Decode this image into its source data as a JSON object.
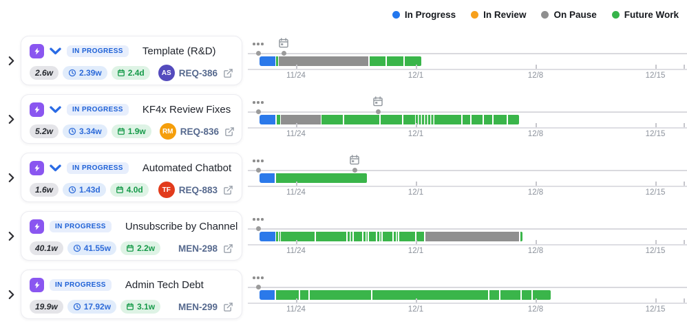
{
  "legend": {
    "items": [
      {
        "label": "In Progress",
        "color": "#2277ee"
      },
      {
        "label": "In Review",
        "color": "#f7a01c"
      },
      {
        "label": "On Pause",
        "color": "#8f8f8f"
      },
      {
        "label": "Future Work",
        "color": "#36b44a"
      }
    ]
  },
  "status_colors": {
    "progress": "#2b79ea",
    "pause": "#8f8f8f",
    "future": "#3ab54a"
  },
  "axis": {
    "ticks": [
      {
        "label": "11/24",
        "pos": 70
      },
      {
        "label": "12/1",
        "pos": 244
      },
      {
        "label": "12/8",
        "pos": 418
      },
      {
        "label": "12/15",
        "pos": 592
      }
    ],
    "end_tick_pos": 633
  },
  "tasks": [
    {
      "title": "Template (R&D)",
      "status": "IN PROGRESS",
      "has_chevron": true,
      "estimate": "2.6w",
      "logged": "2.39w",
      "remaining": "2.4d",
      "assignee": {
        "initials": "AS",
        "color": "#544bbd"
      },
      "ticket": "REQ-386",
      "timeline": {
        "markers": [
          15,
          52
        ],
        "calendar": 52,
        "segments": [
          {
            "type": "progress",
            "s": 17,
            "e": 40
          },
          {
            "type": "future",
            "s": 41,
            "e": 44
          },
          {
            "type": "pause",
            "s": 45,
            "e": 175
          },
          {
            "type": "future",
            "s": 177,
            "e": 200
          },
          {
            "type": "future",
            "s": 202,
            "e": 226
          },
          {
            "type": "future",
            "s": 228,
            "e": 252
          }
        ]
      }
    },
    {
      "title": "KF4x Review Fixes",
      "status": "IN PROGRESS",
      "has_chevron": true,
      "estimate": "5.2w",
      "logged": "3.34w",
      "remaining": "1.9w",
      "assignee": {
        "initials": "RM",
        "color": "#f59e0b"
      },
      "ticket": "REQ-836",
      "timeline": {
        "markers": [
          15,
          189
        ],
        "calendar": 189,
        "segments": [
          {
            "type": "progress",
            "s": 17,
            "e": 40
          },
          {
            "type": "future",
            "s": 42,
            "e": 47
          },
          {
            "type": "pause",
            "s": 48,
            "e": 106
          },
          {
            "type": "future",
            "s": 107,
            "e": 138
          },
          {
            "type": "future",
            "s": 140,
            "e": 191
          },
          {
            "type": "future",
            "s": 193,
            "e": 224
          },
          {
            "type": "future",
            "s": 226,
            "e": 243
          },
          {
            "type": "striped",
            "s": 244,
            "e": 270
          },
          {
            "type": "future",
            "s": 271,
            "e": 310
          },
          {
            "type": "future",
            "s": 312,
            "e": 323
          },
          {
            "type": "future",
            "s": 325,
            "e": 341
          },
          {
            "type": "future",
            "s": 343,
            "e": 355
          },
          {
            "type": "future",
            "s": 357,
            "e": 376
          },
          {
            "type": "future",
            "s": 378,
            "e": 394
          }
        ]
      }
    },
    {
      "title": "Automated Chatbot",
      "status": "IN PROGRESS",
      "has_chevron": true,
      "estimate": "1.6w",
      "logged": "1.43d",
      "remaining": "4.0d",
      "assignee": {
        "initials": "TF",
        "color": "#e23b1c"
      },
      "ticket": "REQ-883",
      "timeline": {
        "markers": [
          15,
          155
        ],
        "calendar": 155,
        "segments": [
          {
            "type": "progress",
            "s": 17,
            "e": 39
          },
          {
            "type": "future",
            "s": 41,
            "e": 173
          }
        ]
      }
    },
    {
      "title": "Unsubscribe by Channel",
      "status": "IN PROGRESS",
      "has_chevron": false,
      "estimate": "40.1w",
      "logged": "41.55w",
      "remaining": "2.2w",
      "assignee": null,
      "ticket": "MEN-298",
      "timeline": {
        "markers": [
          15
        ],
        "calendar": null,
        "segments": [
          {
            "type": "progress",
            "s": 17,
            "e": 40
          },
          {
            "type": "striped",
            "s": 41,
            "e": 47
          },
          {
            "type": "future",
            "s": 48,
            "e": 97
          },
          {
            "type": "future",
            "s": 99,
            "e": 143
          },
          {
            "type": "striped",
            "s": 145,
            "e": 152
          },
          {
            "type": "future",
            "s": 154,
            "e": 166
          },
          {
            "type": "striped",
            "s": 168,
            "e": 174
          },
          {
            "type": "future",
            "s": 176,
            "e": 186
          },
          {
            "type": "striped",
            "s": 188,
            "e": 194
          },
          {
            "type": "future",
            "s": 196,
            "e": 210
          },
          {
            "type": "striped",
            "s": 212,
            "e": 218
          },
          {
            "type": "future",
            "s": 220,
            "e": 243
          },
          {
            "type": "future",
            "s": 245,
            "e": 256
          },
          {
            "type": "pause",
            "s": 258,
            "e": 394
          },
          {
            "type": "future",
            "s": 396,
            "e": 399
          }
        ]
      }
    },
    {
      "title": "Admin Tech Debt",
      "status": "IN PROGRESS",
      "has_chevron": false,
      "estimate": "19.9w",
      "logged": "17.92w",
      "remaining": "3.1w",
      "assignee": null,
      "ticket": "MEN-299",
      "timeline": {
        "markers": [
          15
        ],
        "calendar": null,
        "segments": [
          {
            "type": "progress",
            "s": 17,
            "e": 39
          },
          {
            "type": "future",
            "s": 41,
            "e": 74
          },
          {
            "type": "future",
            "s": 76,
            "e": 88
          },
          {
            "type": "future",
            "s": 90,
            "e": 179
          },
          {
            "type": "future",
            "s": 181,
            "e": 349
          },
          {
            "type": "future",
            "s": 351,
            "e": 365
          },
          {
            "type": "future",
            "s": 367,
            "e": 396
          },
          {
            "type": "future",
            "s": 398,
            "e": 412
          },
          {
            "type": "future",
            "s": 414,
            "e": 440
          }
        ]
      }
    }
  ]
}
